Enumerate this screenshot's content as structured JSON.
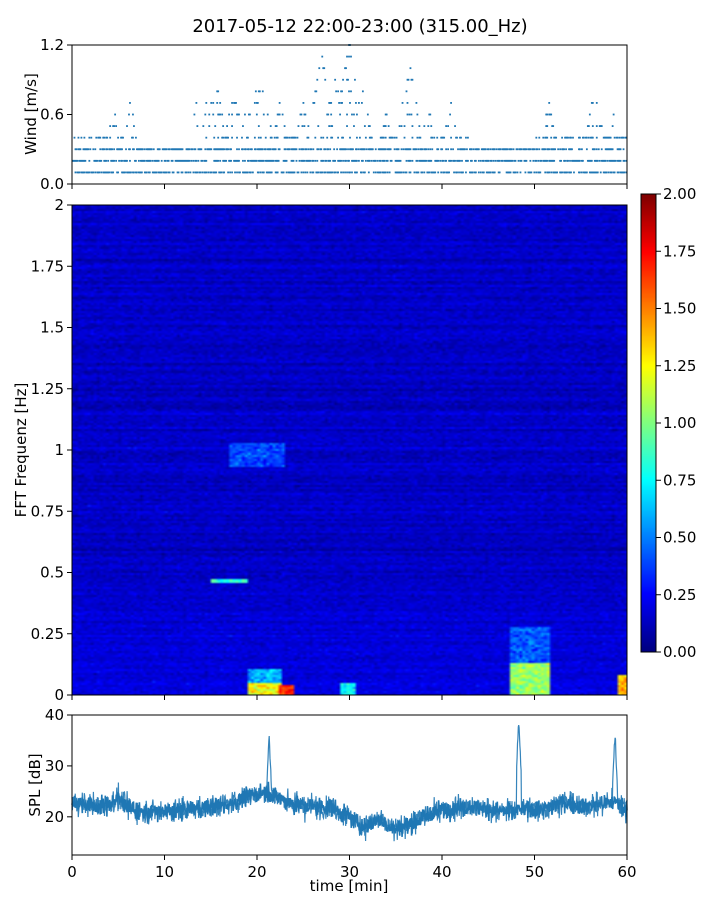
{
  "title": "2017-05-12 22:00-23:00 (315.00_Hz)",
  "chart_data": [
    {
      "type": "scatter",
      "name": "wind",
      "ylabel": "Wind [m/s]",
      "xlim": [
        0,
        60
      ],
      "ylim": [
        0,
        1.2
      ],
      "yticks": [
        0.0,
        0.6,
        1.2
      ],
      "ytick_labels": [
        "0.0",
        "0.6",
        "1.2"
      ],
      "xticks": [
        0,
        10,
        20,
        30,
        40,
        50,
        60
      ],
      "color": "#1f77b4",
      "resolution": 0.1,
      "peaks": [
        {
          "x": 2.5,
          "y": 0.5
        },
        {
          "x": 4.5,
          "y": 0.7
        },
        {
          "x": 6.3,
          "y": 0.7
        },
        {
          "x": 13.5,
          "y": 0.7
        },
        {
          "x": 14.5,
          "y": 0.8
        },
        {
          "x": 15.5,
          "y": 0.9
        },
        {
          "x": 17.5,
          "y": 0.8
        },
        {
          "x": 19.5,
          "y": 1.0
        },
        {
          "x": 20.5,
          "y": 0.9
        },
        {
          "x": 22.5,
          "y": 0.7
        },
        {
          "x": 25,
          "y": 0.7
        },
        {
          "x": 27,
          "y": 1.1
        },
        {
          "x": 28.5,
          "y": 0.9
        },
        {
          "x": 30,
          "y": 1.2
        },
        {
          "x": 31.5,
          "y": 0.8
        },
        {
          "x": 34,
          "y": 0.6
        },
        {
          "x": 36.5,
          "y": 1.0
        },
        {
          "x": 38.5,
          "y": 0.7
        },
        {
          "x": 41,
          "y": 0.7
        },
        {
          "x": 46,
          "y": 0.6
        },
        {
          "x": 51.5,
          "y": 0.7
        },
        {
          "x": 56,
          "y": 0.6
        },
        {
          "x": 56.5,
          "y": 0.8
        },
        {
          "x": 58.5,
          "y": 0.6
        }
      ]
    },
    {
      "type": "heatmap",
      "name": "fft-spectrogram",
      "ylabel": "FFT Frequenz [Hz]",
      "xlim": [
        0,
        60
      ],
      "ylim": [
        0,
        2
      ],
      "yticks": [
        0,
        0.25,
        0.5,
        0.75,
        1,
        1.25,
        1.5,
        1.75,
        2
      ],
      "ytick_labels": [
        "0",
        "0.25",
        "0.5",
        "0.75",
        "1",
        "1.25",
        "1.5",
        "1.75",
        "2"
      ],
      "xticks": [
        0,
        10,
        20,
        30,
        40,
        50,
        60
      ],
      "colormap": "jet",
      "colorbar": {
        "min": 0,
        "max": 2,
        "ticks": [
          "0.00",
          "0.25",
          "0.50",
          "0.75",
          "1.00",
          "1.25",
          "1.50",
          "1.75",
          "2.00"
        ],
        "tick_values": [
          0,
          0.25,
          0.5,
          0.75,
          1.0,
          1.25,
          1.5,
          1.75,
          2.0
        ]
      },
      "background_level": 0.14,
      "hotspots": [
        {
          "x0": 47.5,
          "x1": 51.5,
          "f0": 0.0,
          "f1": 0.13,
          "value": 1.05
        },
        {
          "x0": 47.5,
          "x1": 51.5,
          "f0": 0.13,
          "f1": 0.28,
          "value": 0.42
        },
        {
          "x0": 19,
          "x1": 22.5,
          "f0": 0.0,
          "f1": 0.05,
          "value": 1.25
        },
        {
          "x0": 19,
          "x1": 22.5,
          "f0": 0.05,
          "f1": 0.11,
          "value": 0.6
        },
        {
          "x0": 22.5,
          "x1": 24,
          "f0": 0.0,
          "f1": 0.04,
          "value": 1.7
        },
        {
          "x0": 29,
          "x1": 30.5,
          "f0": 0.0,
          "f1": 0.05,
          "value": 0.75
        },
        {
          "x0": 59,
          "x1": 60,
          "f0": 0.0,
          "f1": 0.08,
          "value": 1.4
        },
        {
          "x0": 15,
          "x1": 19,
          "f0": 0.46,
          "f1": 0.475,
          "value": 0.8
        },
        {
          "x0": 17,
          "x1": 23,
          "f0": 0.93,
          "f1": 1.03,
          "value": 0.38
        }
      ]
    },
    {
      "type": "line",
      "name": "spl",
      "ylabel": "SPL [dB]",
      "xlabel": "time [min]",
      "xlim": [
        0,
        60
      ],
      "ylim": [
        12.5,
        40
      ],
      "yticks": [
        20,
        30,
        40
      ],
      "ytick_labels": [
        "20",
        "30",
        "40"
      ],
      "xticks": [
        0,
        10,
        20,
        30,
        40,
        50,
        60
      ],
      "xtick_labels": [
        "0",
        "10",
        "20",
        "30",
        "40",
        "50",
        "60"
      ],
      "color": "#1f77b4",
      "envelope": [
        {
          "x": 0,
          "y": 23
        },
        {
          "x": 3,
          "y": 22
        },
        {
          "x": 5,
          "y": 23.5
        },
        {
          "x": 7,
          "y": 21
        },
        {
          "x": 10,
          "y": 21
        },
        {
          "x": 13,
          "y": 21.5
        },
        {
          "x": 15,
          "y": 22
        },
        {
          "x": 17,
          "y": 22.5
        },
        {
          "x": 19,
          "y": 24
        },
        {
          "x": 21,
          "y": 25
        },
        {
          "x": 22,
          "y": 24
        },
        {
          "x": 24,
          "y": 22.5
        },
        {
          "x": 26,
          "y": 22
        },
        {
          "x": 28,
          "y": 22
        },
        {
          "x": 30,
          "y": 20
        },
        {
          "x": 31.5,
          "y": 18
        },
        {
          "x": 33,
          "y": 19.5
        },
        {
          "x": 35,
          "y": 17.5
        },
        {
          "x": 37,
          "y": 19
        },
        {
          "x": 40,
          "y": 21.5
        },
        {
          "x": 43,
          "y": 22
        },
        {
          "x": 45,
          "y": 21.5
        },
        {
          "x": 47,
          "y": 21
        },
        {
          "x": 49,
          "y": 21.5
        },
        {
          "x": 51,
          "y": 21.5
        },
        {
          "x": 53,
          "y": 23
        },
        {
          "x": 55,
          "y": 22
        },
        {
          "x": 57,
          "y": 22.5
        },
        {
          "x": 59,
          "y": 23
        },
        {
          "x": 60,
          "y": 21.5
        }
      ],
      "spikes": [
        {
          "x": 21.3,
          "y": 36
        },
        {
          "x": 48.3,
          "y": 39
        },
        {
          "x": 58.7,
          "y": 36.5
        }
      ]
    }
  ]
}
